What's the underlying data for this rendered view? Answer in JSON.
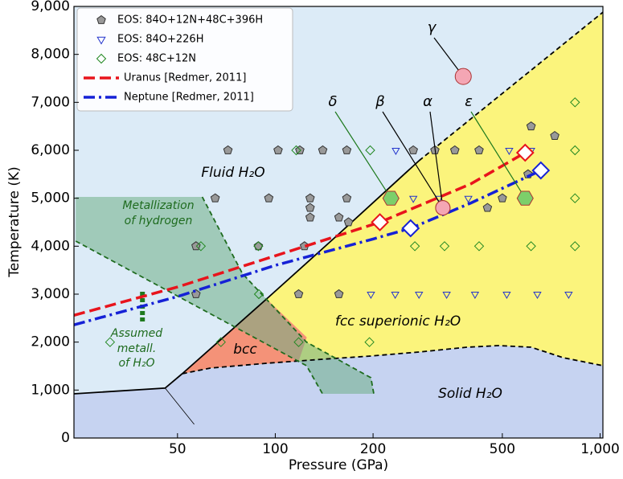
{
  "chart_data": {
    "type": "phase-diagram",
    "xlabel": "Pressure (GPa)",
    "ylabel": "Temperature (K)",
    "xscale": "log",
    "xlim": [
      24,
      1020
    ],
    "ylim": [
      0,
      9000
    ],
    "xticks": [
      50,
      100,
      200,
      500,
      {
        "value": 1000,
        "label": "1,000"
      }
    ],
    "yticks": [
      0,
      {
        "value": 1000,
        "label": "1,000"
      },
      {
        "value": 2000,
        "label": "2,000"
      },
      {
        "value": 3000,
        "label": "3,000"
      },
      {
        "value": 4000,
        "label": "4,000"
      },
      {
        "value": 5000,
        "label": "5,000"
      },
      {
        "value": 6000,
        "label": "6,000"
      },
      {
        "value": 7000,
        "label": "7,000"
      },
      {
        "value": 8000,
        "label": "8,000"
      },
      {
        "value": 9000,
        "label": "9,000"
      }
    ],
    "background": "#dcebf7",
    "regions": [
      {
        "color": "#c6d3f1",
        "x": [
          24,
          45.8,
          51.7,
          63.1,
          94,
          139.8,
          197,
          277,
          389,
          488,
          613,
          769,
          1020,
          1020,
          24
        ],
        "y": [
          922,
          1040,
          1341,
          1458,
          1559,
          1643,
          1710,
          1793,
          1894,
          1927,
          1894,
          1676,
          1508,
          0,
          0
        ]
      },
      {
        "color": "#fbf47c",
        "x": [
          51.7,
          94,
          155,
          277,
          1020,
          1020,
          769,
          613,
          488,
          389,
          277,
          197,
          139.8,
          94,
          63.1
        ],
        "y": [
          1341,
          2900,
          4224,
          5782,
          8880,
          1508,
          1676,
          1894,
          1927,
          1894,
          1793,
          1710,
          1643,
          1559,
          1458
        ]
      },
      {
        "color": "#f49278",
        "x": [
          51.7,
          94,
          125,
          118,
          63.1
        ],
        "y": [
          1341,
          2900,
          2100,
          1600,
          1458
        ]
      },
      {
        "color": "#6fae86",
        "x": [
          24.3,
          59.6,
          79.2,
          124.8,
          197,
          201,
          139.8,
          124.8,
          24.3
        ],
        "y": [
          5028,
          5028,
          3430,
          2000,
          1257,
          922,
          922,
          1508,
          4106
        ]
      }
    ],
    "boundaries": [
      {
        "color": "#000000",
        "style": "solid",
        "x": [
          51.7,
          94,
          155,
          277
        ],
        "y": [
          1341,
          2900,
          4224,
          5782
        ]
      },
      {
        "color": "#000000",
        "style": "dashed",
        "x": [
          277,
          1020
        ],
        "y": [
          5782,
          8880
        ]
      },
      {
        "color": "#000000",
        "style": "solid",
        "x": [
          24,
          45.8,
          51.7
        ],
        "y": [
          922,
          1040,
          1341
        ]
      },
      {
        "color": "#000000",
        "style": "thin",
        "x": [
          45.8,
          56.3
        ],
        "y": [
          1040,
          285
        ]
      },
      {
        "color": "#000000",
        "style": "dashed",
        "x": [
          51.7,
          63.1,
          94,
          139.8,
          197,
          277,
          389,
          488,
          613,
          769,
          1020
        ],
        "y": [
          1341,
          1458,
          1559,
          1643,
          1710,
          1793,
          1894,
          1927,
          1894,
          1676,
          1508
        ]
      },
      {
        "color": "#1e6b1e",
        "style": "dashed",
        "x": [
          59.6,
          79.2,
          124.8,
          197,
          201
        ],
        "y": [
          5028,
          3430,
          2000,
          1257,
          922
        ]
      },
      {
        "color": "#1e6b1e",
        "style": "dashed",
        "x": [
          24.3,
          124.8,
          139.8
        ],
        "y": [
          4106,
          1508,
          922
        ]
      }
    ],
    "series": [
      {
        "name": "EOS: 84O+12N+48C+396H",
        "color": "#999999",
        "marker": "pentagon",
        "x": [
          71.5,
          65.3,
          95.5,
          57,
          88.7,
          57,
          102,
          119,
          140,
          166,
          128,
          128,
          128,
          123,
          157,
          168,
          166,
          118,
          157,
          266,
          310,
          357,
          424,
          613,
          725,
          600,
          500,
          450
        ],
        "y": [
          6000,
          5000,
          5000,
          4000,
          4000,
          3000,
          6000,
          6000,
          6000,
          6000,
          4800,
          4600,
          5000,
          4000,
          4600,
          4500,
          5000,
          3000,
          3000,
          6000,
          6000,
          6000,
          6000,
          6500,
          6300,
          5500,
          5000,
          4800
        ]
      },
      {
        "name": "EOS: 84O+226H",
        "color": "#2233cc",
        "marker": "triangle",
        "x": [
          235,
          613,
          525,
          266,
          319,
          393,
          197,
          234,
          277,
          337,
          412,
          516,
          641,
          800
        ],
        "y": [
          6000,
          6000,
          6000,
          5000,
          5000,
          5000,
          3000,
          3000,
          3000,
          3000,
          3000,
          3000,
          3000,
          3000
        ]
      },
      {
        "name": "EOS: 48C+12N",
        "color": "#228822",
        "marker": "diamond",
        "x": [
          116,
          196,
          837,
          837,
          837,
          837,
          613,
          424,
          332,
          269,
          88.7,
          59,
          89,
          118,
          68,
          195,
          31
        ],
        "y": [
          6000,
          6000,
          6000,
          7000,
          5000,
          4000,
          4000,
          4000,
          4000,
          4000,
          4000,
          4000,
          3000,
          2000,
          2000,
          2000,
          2000
        ]
      },
      {
        "name": "Uranus  [Redmer, 2011]",
        "color": "#e8141c",
        "style": "dashed",
        "x": [
          24,
          50,
          100,
          210,
          400,
          588
        ],
        "y": [
          2560,
          3150,
          3800,
          4500,
          5300,
          5950
        ],
        "marker_x": [
          210,
          588
        ],
        "marker_y": [
          4500,
          5950
        ]
      },
      {
        "name": "Neptune [Redmer, 2011]",
        "color": "#1521d6",
        "style": "dashdot",
        "x": [
          24,
          50,
          100,
          200,
          261,
          400,
          657
        ],
        "y": [
          2360,
          2950,
          3600,
          4150,
          4375,
          4900,
          5580
        ],
        "marker_x": [
          261,
          657
        ],
        "marker_y": [
          4375,
          5580
        ]
      }
    ],
    "annotations": [
      {
        "label": "γ",
        "x": 379,
        "y": 7540,
        "color": "#f4a6b4",
        "marker": "circle",
        "line_color": "#000000"
      },
      {
        "label": "δ",
        "x": 227,
        "y": 5000,
        "color": "#7ccf6a",
        "marker": "hexagon",
        "line_color": "#1e7a1e"
      },
      {
        "label": "β",
        "x": 328,
        "y": 4800,
        "color": "#f4a6b4",
        "marker": "circle",
        "line_color": "#000000"
      },
      {
        "label": "α",
        "x": 328,
        "y": 4800,
        "color": "#f4a6b4",
        "marker": "circle",
        "line_color": "#000000"
      },
      {
        "label": "ε",
        "x": 588,
        "y": 5000,
        "color": "#7ccf6a",
        "marker": "hexagon",
        "line_color": "#1e7a1e"
      }
    ],
    "assumed_metallization": {
      "color": "#1e7a1e",
      "x": 39,
      "y": [
        2430,
        3100
      ]
    },
    "region_labels": [
      "Fluid H₂O",
      "Metallization",
      "of hydrogen",
      "bcc",
      "fcc superionic H₂O",
      "Solid H₂O",
      "Assumed",
      "metall.",
      "of H₂O"
    ]
  }
}
